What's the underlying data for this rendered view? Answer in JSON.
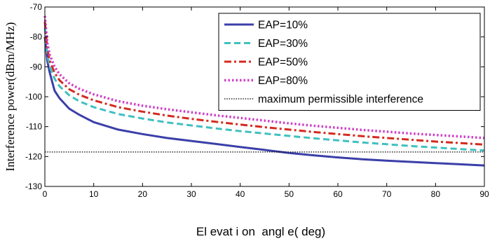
{
  "chart_data": {
    "type": "line",
    "xlabel": "El evat i on  angl e( deg)",
    "ylabel": "Interference power(dBm/MHz)",
    "xlim": [
      0,
      90
    ],
    "ylim": [
      -130,
      -70
    ],
    "xticks": [
      "0",
      "10",
      "20",
      "30",
      "40",
      "50",
      "60",
      "70",
      "80",
      "90"
    ],
    "yticks": [
      "-70",
      "-80",
      "-90",
      "-100",
      "-110",
      "-120",
      "-130"
    ],
    "grid": false,
    "legend_position": "top-right",
    "series": [
      {
        "name": "EAP=10%",
        "color": "#3b3fa8",
        "style": "solid",
        "x": [
          0,
          0.5,
          1,
          2,
          3,
          5,
          7,
          10,
          15,
          20,
          25,
          30,
          35,
          40,
          45,
          50,
          55,
          60,
          65,
          70,
          75,
          80,
          85,
          90
        ],
        "y": [
          -80,
          -88,
          -92,
          -98,
          -100.5,
          -104,
          -106,
          -108.5,
          -111,
          -112.5,
          -113.8,
          -114.8,
          -115.8,
          -116.8,
          -117.8,
          -118.8,
          -119.6,
          -120.3,
          -120.9,
          -121.4,
          -121.8,
          -122.2,
          -122.6,
          -123
        ]
      },
      {
        "name": "EAP=30%",
        "color": "#40c0c0",
        "style": "dashed",
        "x": [
          0,
          0.5,
          1,
          2,
          3,
          5,
          7,
          10,
          15,
          20,
          25,
          30,
          35,
          40,
          45,
          50,
          55,
          60,
          65,
          70,
          75,
          80,
          85,
          90
        ],
        "y": [
          -77,
          -86,
          -90,
          -94,
          -96.5,
          -99.5,
          -101.5,
          -103.5,
          -105.8,
          -107.3,
          -108.6,
          -109.6,
          -110.6,
          -111.5,
          -112.3,
          -113.1,
          -113.9,
          -114.6,
          -115.3,
          -115.9,
          -116.5,
          -117,
          -117.5,
          -118
        ]
      },
      {
        "name": "EAP=50%",
        "color": "#d42a1e",
        "style": "dashdot",
        "x": [
          0,
          0.5,
          1,
          2,
          3,
          5,
          7,
          10,
          15,
          20,
          25,
          30,
          35,
          40,
          45,
          50,
          55,
          60,
          65,
          70,
          75,
          80,
          85,
          90
        ],
        "y": [
          -75,
          -84,
          -88,
          -92,
          -94.5,
          -97.5,
          -99.3,
          -101.2,
          -103.5,
          -105,
          -106.3,
          -107.4,
          -108.4,
          -109.3,
          -110.2,
          -111,
          -111.8,
          -112.5,
          -113.2,
          -113.8,
          -114.4,
          -115,
          -115.5,
          -116
        ]
      },
      {
        "name": "EAP=80%",
        "color": "#d040c8",
        "style": "dotted",
        "x": [
          0,
          0.5,
          1,
          2,
          3,
          5,
          7,
          10,
          15,
          20,
          25,
          30,
          35,
          40,
          45,
          50,
          55,
          60,
          65,
          70,
          75,
          80,
          85,
          90
        ],
        "y": [
          -73,
          -82,
          -86,
          -90,
          -92.5,
          -95.5,
          -97.3,
          -99.2,
          -101.5,
          -103,
          -104.2,
          -105.2,
          -106.2,
          -107.1,
          -108,
          -108.9,
          -109.7,
          -110.4,
          -111.1,
          -111.7,
          -112.3,
          -112.8,
          -113.3,
          -113.8
        ]
      },
      {
        "name": "maximum permissible interference",
        "color": "#000000",
        "style": "fine-dotted",
        "x": [
          0,
          90
        ],
        "y": [
          -118.5,
          -118.5
        ]
      }
    ]
  }
}
